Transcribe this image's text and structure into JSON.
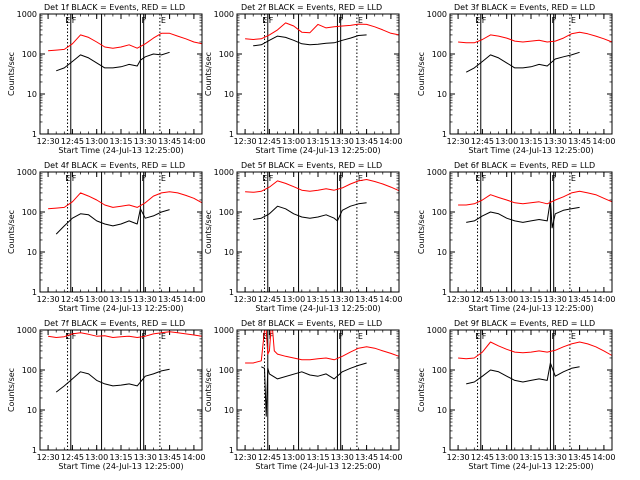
{
  "chart_data": {
    "type": "line",
    "layout": "3x3 grid",
    "y_scale": "log",
    "ylim": [
      1,
      1000
    ],
    "y_ticks": [
      1,
      10,
      100,
      1000
    ],
    "ylabel": "Counts/sec",
    "xlabel": "Start Time (24-Jul-13 12:25:00)",
    "xlim": [
      "12:25",
      "14:05"
    ],
    "x_ticks": [
      "12:30",
      "12:45",
      "13:00",
      "13:15",
      "13:30",
      "13:45",
      "14:00"
    ],
    "colors": {
      "events": "#000000",
      "lld": "#ff0000",
      "axes": "#000000",
      "background": "#ffffff"
    },
    "marker_lines_solid": [
      "12:44",
      "13:03",
      "13:27",
      "13:29"
    ],
    "marker_lines_dotted": [
      "12:42",
      "13:39"
    ],
    "marker_labels": [
      {
        "label": "E",
        "at": "12:40"
      },
      {
        "label": "F",
        "at": "12:44"
      },
      {
        "label": "F",
        "at": "13:27"
      },
      {
        "label": "E",
        "at": "13:39"
      }
    ],
    "panels": [
      {
        "title": "Det 1f BLACK = Events, RED = LLD",
        "series": [
          {
            "name": "BLACK = Events",
            "color": "#000000",
            "x": [
              "12:35",
              "12:40",
              "12:45",
              "12:50",
              "12:55",
              "13:00",
              "13:05",
              "13:10",
              "13:15",
              "13:20",
              "13:25",
              "13:27",
              "13:30",
              "13:35",
              "13:40",
              "13:45"
            ],
            "y": [
              38,
              45,
              65,
              95,
              80,
              60,
              45,
              45,
              48,
              55,
              50,
              70,
              85,
              100,
              95,
              110
            ]
          },
          {
            "name": "RED = LLD",
            "color": "#ff0000",
            "x": [
              "12:30",
              "12:35",
              "12:40",
              "12:45",
              "12:50",
              "12:55",
              "13:00",
              "13:05",
              "13:10",
              "13:15",
              "13:20",
              "13:25",
              "13:30",
              "13:35",
              "13:40",
              "13:45",
              "13:50",
              "13:55",
              "14:00",
              "14:05"
            ],
            "y": [
              120,
              125,
              130,
              180,
              300,
              260,
              200,
              150,
              140,
              150,
              170,
              140,
              180,
              250,
              330,
              330,
              280,
              240,
              200,
              180
            ]
          }
        ]
      },
      {
        "title": "Det 2f BLACK = Events, RED = LLD",
        "series": [
          {
            "name": "BLACK = Events",
            "color": "#000000",
            "x": [
              "12:35",
              "12:40",
              "12:45",
              "12:50",
              "12:55",
              "13:00",
              "13:05",
              "13:10",
              "13:15",
              "13:20",
              "13:25",
              "13:30",
              "13:35",
              "13:40",
              "13:45"
            ],
            "y": [
              160,
              170,
              220,
              280,
              260,
              220,
              180,
              170,
              175,
              185,
              190,
              220,
              250,
              290,
              300
            ]
          },
          {
            "name": "RED = LLD",
            "color": "#ff0000",
            "x": [
              "12:30",
              "12:35",
              "12:40",
              "12:45",
              "12:50",
              "12:55",
              "13:00",
              "13:05",
              "13:10",
              "13:15",
              "13:20",
              "13:25",
              "13:30",
              "13:35",
              "13:40",
              "13:45",
              "13:50",
              "13:55",
              "14:00",
              "14:05"
            ],
            "y": [
              240,
              230,
              240,
              300,
              400,
              600,
              500,
              350,
              340,
              550,
              450,
              480,
              500,
              520,
              560,
              550,
              480,
              400,
              330,
              300
            ]
          }
        ]
      },
      {
        "title": "Det 3f BLACK = Events, RED = LLD",
        "series": [
          {
            "name": "BLACK = Events",
            "color": "#000000",
            "x": [
              "12:35",
              "12:40",
              "12:45",
              "12:50",
              "12:55",
              "13:00",
              "13:05",
              "13:10",
              "13:15",
              "13:20",
              "13:25",
              "13:30",
              "13:35",
              "13:40",
              "13:45"
            ],
            "y": [
              35,
              45,
              65,
              95,
              80,
              60,
              45,
              45,
              48,
              55,
              50,
              75,
              85,
              95,
              110
            ]
          },
          {
            "name": "RED = LLD",
            "color": "#ff0000",
            "x": [
              "12:30",
              "12:35",
              "12:40",
              "12:45",
              "12:50",
              "12:55",
              "13:00",
              "13:05",
              "13:10",
              "13:15",
              "13:20",
              "13:25",
              "13:30",
              "13:35",
              "13:40",
              "13:45",
              "13:50",
              "13:55",
              "14:00",
              "14:05"
            ],
            "y": [
              200,
              190,
              190,
              230,
              300,
              280,
              250,
              210,
              200,
              210,
              220,
              200,
              210,
              250,
              320,
              350,
              320,
              280,
              240,
              200
            ]
          }
        ]
      },
      {
        "title": "Det 4f BLACK = Events, RED = LLD",
        "series": [
          {
            "name": "BLACK = Events",
            "color": "#000000",
            "x": [
              "12:35",
              "12:40",
              "12:45",
              "12:50",
              "12:55",
              "13:00",
              "13:05",
              "13:10",
              "13:15",
              "13:20",
              "13:25",
              "13:27",
              "13:30",
              "13:35",
              "13:40",
              "13:45"
            ],
            "y": [
              28,
              45,
              70,
              90,
              85,
              60,
              50,
              45,
              50,
              60,
              50,
              120,
              70,
              80,
              100,
              115
            ]
          },
          {
            "name": "RED = LLD",
            "color": "#ff0000",
            "x": [
              "12:30",
              "12:35",
              "12:40",
              "12:45",
              "12:50",
              "12:55",
              "13:00",
              "13:05",
              "13:10",
              "13:15",
              "13:20",
              "13:25",
              "13:30",
              "13:35",
              "13:40",
              "13:45",
              "13:50",
              "13:55",
              "14:00",
              "14:05"
            ],
            "y": [
              120,
              125,
              130,
              180,
              300,
              250,
              200,
              150,
              130,
              140,
              150,
              130,
              170,
              250,
              300,
              320,
              300,
              260,
              220,
              170
            ]
          }
        ]
      },
      {
        "title": "Det 5f BLACK = Events, RED = LLD",
        "series": [
          {
            "name": "BLACK = Events",
            "color": "#000000",
            "x": [
              "12:35",
              "12:40",
              "12:45",
              "12:50",
              "12:55",
              "13:00",
              "13:05",
              "13:10",
              "13:15",
              "13:20",
              "13:25",
              "13:27",
              "13:30",
              "13:35",
              "13:40",
              "13:45"
            ],
            "y": [
              65,
              70,
              90,
              140,
              120,
              90,
              75,
              70,
              75,
              85,
              70,
              60,
              110,
              140,
              160,
              170
            ]
          },
          {
            "name": "RED = LLD",
            "color": "#ff0000",
            "x": [
              "12:30",
              "12:35",
              "12:40",
              "12:45",
              "12:50",
              "12:55",
              "13:00",
              "13:05",
              "13:10",
              "13:15",
              "13:20",
              "13:25",
              "13:30",
              "13:35",
              "13:40",
              "13:45",
              "13:50",
              "13:55",
              "14:00",
              "14:05"
            ],
            "y": [
              320,
              310,
              330,
              420,
              600,
              520,
              430,
              350,
              330,
              350,
              380,
              350,
              400,
              500,
              600,
              650,
              580,
              500,
              420,
              340
            ]
          }
        ]
      },
      {
        "title": "Det 6f BLACK = Events, RED = LLD",
        "series": [
          {
            "name": "BLACK = Events",
            "color": "#000000",
            "x": [
              "12:35",
              "12:40",
              "12:45",
              "12:50",
              "12:55",
              "13:00",
              "13:05",
              "13:10",
              "13:15",
              "13:20",
              "13:25",
              "13:27",
              "13:28",
              "13:30",
              "13:35",
              "13:40",
              "13:45"
            ],
            "y": [
              55,
              60,
              80,
              100,
              90,
              70,
              60,
              55,
              60,
              65,
              60,
              200,
              40,
              90,
              110,
              120,
              130
            ]
          },
          {
            "name": "RED = LLD",
            "color": "#ff0000",
            "x": [
              "12:30",
              "12:35",
              "12:40",
              "12:45",
              "12:50",
              "12:55",
              "13:00",
              "13:05",
              "13:10",
              "13:15",
              "13:20",
              "13:25",
              "13:30",
              "13:35",
              "13:40",
              "13:45",
              "13:50",
              "13:55",
              "14:00",
              "14:05"
            ],
            "y": [
              150,
              150,
              160,
              200,
              270,
              230,
              200,
              170,
              160,
              170,
              180,
              160,
              200,
              240,
              300,
              330,
              300,
              270,
              220,
              180
            ]
          }
        ]
      },
      {
        "title": "Det 7f BLACK = Events, RED = LLD",
        "series": [
          {
            "name": "BLACK = Events",
            "color": "#000000",
            "x": [
              "12:35",
              "12:40",
              "12:45",
              "12:50",
              "12:55",
              "13:00",
              "13:05",
              "13:10",
              "13:15",
              "13:20",
              "13:25",
              "13:30",
              "13:35",
              "13:40",
              "13:45"
            ],
            "y": [
              28,
              40,
              60,
              90,
              80,
              55,
              45,
              40,
              42,
              45,
              40,
              70,
              80,
              95,
              105
            ]
          },
          {
            "name": "RED = LLD",
            "color": "#ff0000",
            "x": [
              "12:30",
              "12:35",
              "12:40",
              "12:45",
              "12:50",
              "12:55",
              "13:00",
              "13:05",
              "13:10",
              "13:15",
              "13:20",
              "13:25",
              "13:30",
              "13:35",
              "13:40",
              "13:45",
              "13:50",
              "13:55",
              "14:00",
              "14:05"
            ],
            "y": [
              700,
              650,
              680,
              800,
              850,
              780,
              700,
              720,
              650,
              680,
              700,
              650,
              700,
              800,
              850,
              900,
              850,
              800,
              750,
              700
            ]
          }
        ]
      },
      {
        "title": "Det 8f BLACK = Events, RED = LLD",
        "series": [
          {
            "name": "BLACK = Events",
            "color": "#000000",
            "x": [
              "12:40",
              "12:42",
              "12:43",
              "12:44",
              "12:45",
              "12:50",
              "13:05",
              "13:10",
              "13:15",
              "13:20",
              "13:25",
              "13:30",
              "13:35",
              "13:40",
              "13:45"
            ],
            "y": [
              120,
              110,
              7,
              110,
              80,
              60,
              90,
              75,
              70,
              80,
              60,
              90,
              110,
              130,
              150
            ]
          },
          {
            "name": "RED = LLD",
            "color": "#ff0000",
            "x": [
              "12:30",
              "12:35",
              "12:40",
              "12:42",
              "12:43",
              "12:44",
              "12:45",
              "12:46",
              "12:47",
              "12:48",
              "12:50",
              "12:55",
              "13:00",
              "13:05",
              "13:10",
              "13:15",
              "13:20",
              "13:25",
              "13:30",
              "13:35",
              "13:40",
              "13:45",
              "13:50",
              "13:55",
              "14:00",
              "14:05"
            ],
            "y": [
              150,
              150,
              170,
              1000,
              1000,
              250,
              300,
              1000,
              1000,
              300,
              250,
              220,
              200,
              180,
              180,
              190,
              200,
              180,
              220,
              280,
              350,
              380,
              350,
              300,
              260,
              220
            ]
          }
        ]
      },
      {
        "title": "Det 9f BLACK = Events, RED = LLD",
        "series": [
          {
            "name": "BLACK = Events",
            "color": "#000000",
            "x": [
              "12:35",
              "12:40",
              "12:45",
              "12:50",
              "12:55",
              "13:00",
              "13:05",
              "13:10",
              "13:15",
              "13:20",
              "13:25",
              "13:27",
              "13:30",
              "13:35",
              "13:40",
              "13:45"
            ],
            "y": [
              45,
              50,
              70,
              100,
              90,
              70,
              55,
              50,
              55,
              60,
              55,
              150,
              70,
              90,
              110,
              120
            ]
          },
          {
            "name": "RED = LLD",
            "color": "#ff0000",
            "x": [
              "12:30",
              "12:35",
              "12:40",
              "12:45",
              "12:50",
              "12:55",
              "13:00",
              "13:05",
              "13:10",
              "13:15",
              "13:20",
              "13:25",
              "13:30",
              "13:35",
              "13:40",
              "13:45",
              "13:50",
              "13:55",
              "14:00",
              "14:05"
            ],
            "y": [
              200,
              190,
              200,
              280,
              500,
              400,
              330,
              280,
              270,
              280,
              300,
              280,
              310,
              380,
              450,
              500,
              450,
              380,
              300,
              230
            ]
          }
        ]
      }
    ]
  }
}
